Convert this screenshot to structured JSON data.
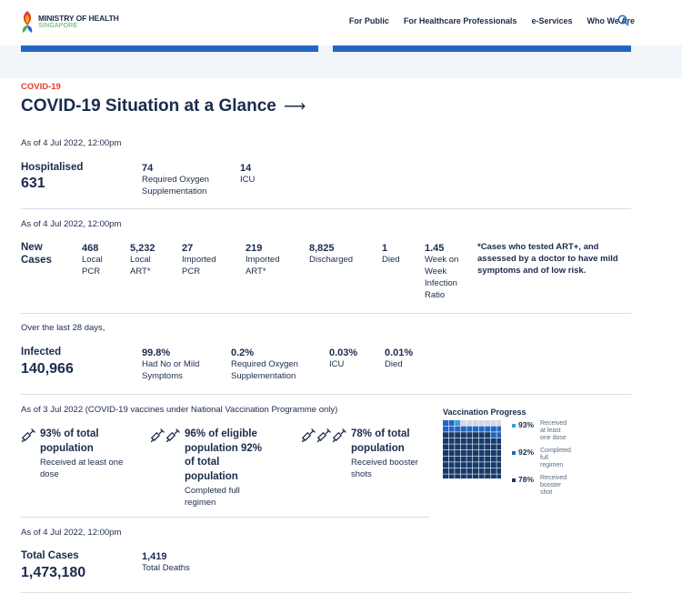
{
  "header": {
    "logo_line1": "MINISTRY OF HEALTH",
    "logo_line2": "SINGAPORE",
    "nav": [
      "For Public",
      "For Healthcare Professionals",
      "e-Services",
      "Who We Are"
    ]
  },
  "category": "COVID-19",
  "title": "COVID-19 Situation at a Glance",
  "hospital": {
    "asof": "As of 4 Jul 2022, 12:00pm",
    "label": "Hospitalised",
    "value": "631",
    "stats": [
      {
        "value": "74",
        "label": "Required Oxygen Supplementation"
      },
      {
        "value": "14",
        "label": "ICU"
      }
    ]
  },
  "cases": {
    "asof": "As of 4 Jul 2022, 12:00pm",
    "label": "New Cases",
    "stats": [
      {
        "value": "468",
        "label": "Local PCR"
      },
      {
        "value": "5,232",
        "label": "Local ART*"
      },
      {
        "value": "27",
        "label": "Imported PCR"
      },
      {
        "value": "219",
        "label": "Imported ART*"
      },
      {
        "value": "8,825",
        "label": "Discharged"
      },
      {
        "value": "1",
        "label": "Died"
      },
      {
        "value": "1.45",
        "label": "Week on Week Infection Ratio"
      }
    ],
    "note": "*Cases who tested ART+, and assessed by a doctor to have mild symptoms and of low risk."
  },
  "infected": {
    "asof": "Over the last 28 days,",
    "label": "Infected",
    "value": "140,966",
    "stats": [
      {
        "value": "99.8%",
        "label": "Had No or Mild Symptoms"
      },
      {
        "value": "0.2%",
        "label": "Required Oxygen Supplementation"
      },
      {
        "value": "0.03%",
        "label": "ICU"
      },
      {
        "value": "0.01%",
        "label": "Died"
      }
    ]
  },
  "vaccination": {
    "asof": "As of 3 Jul 2022 (COVID-19 vaccines under National Vaccination Programme only)",
    "items": [
      {
        "main": "93% of total population",
        "sub": "Received at least one dose"
      },
      {
        "main": "96% of eligible population 92% of total population",
        "sub": "Completed full regimen"
      },
      {
        "main": "78% of total population",
        "sub": "Received booster shots"
      }
    ],
    "progress": {
      "title": "Vaccination Progress",
      "legend": [
        {
          "pct": "93%",
          "label": "Received at least one dose",
          "color": "#3aa0d8",
          "value": 0.93
        },
        {
          "pct": "92%",
          "label": "Completed full regimen",
          "color": "#2266c4",
          "value": 0.92
        },
        {
          "pct": "78%",
          "label": "Received booster shot",
          "color": "#163a6b",
          "value": 0.78
        }
      ]
    }
  },
  "totals": {
    "asof": "As of 4 Jul 2022, 12:00pm",
    "label": "Total Cases",
    "value": "1,473,180",
    "stats": [
      {
        "value": "1,419",
        "label": "Total Deaths"
      }
    ]
  },
  "colors": {
    "accent": "#2266c4",
    "red": "#e0402e",
    "navy": "#1a2b4c"
  }
}
